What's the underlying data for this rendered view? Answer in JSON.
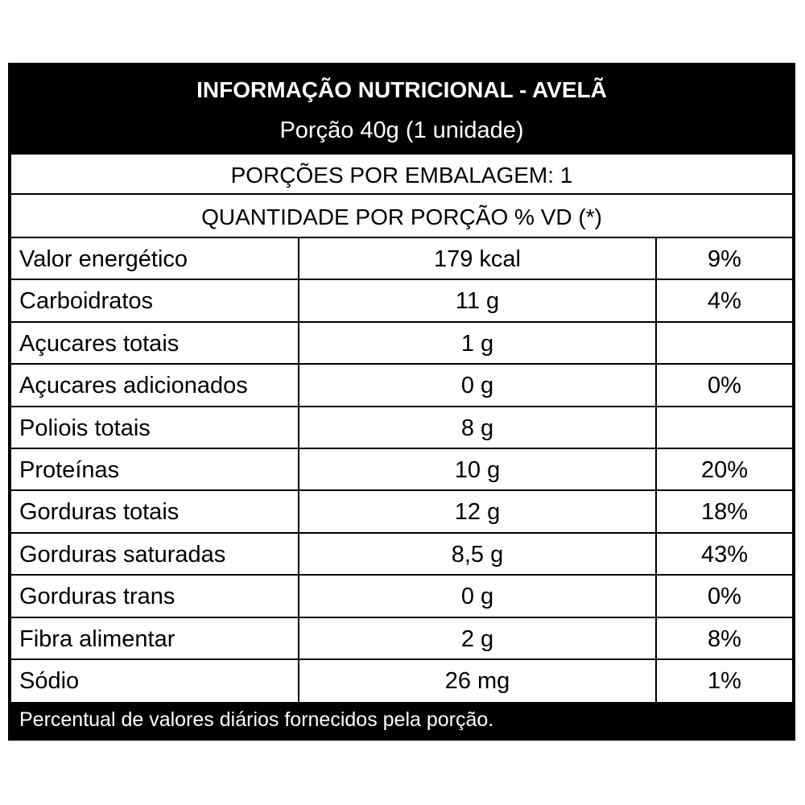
{
  "title": "INFORMAÇÃO NUTRICIONAL - AVELÃ",
  "portion": "Porção 40g (1 unidade)",
  "servings": "PORÇÕES POR EMBALAGEM: 1",
  "quantity_header": "QUANTIDADE POR PORÇÃO % VD (*)",
  "rows": [
    {
      "name": "Valor energético",
      "amount": "179 kcal",
      "vd": "9%"
    },
    {
      "name": "Carboidratos",
      "amount": "11 g",
      "vd": "4%"
    },
    {
      "name": "Açucares totais",
      "amount": "1 g",
      "vd": ""
    },
    {
      "name": "Açucares adicionados",
      "amount": "0 g",
      "vd": "0%"
    },
    {
      "name": "Poliois totais",
      "amount": "8 g",
      "vd": ""
    },
    {
      "name": "Proteínas",
      "amount": "10 g",
      "vd": "20%"
    },
    {
      "name": "Gorduras totais",
      "amount": "12 g",
      "vd": "18%"
    },
    {
      "name": "Gorduras saturadas",
      "amount": "8,5 g",
      "vd": "43%"
    },
    {
      "name": "Gorduras trans",
      "amount": "0 g",
      "vd": "0%"
    },
    {
      "name": "Fibra alimentar",
      "amount": "2 g",
      "vd": "8%"
    },
    {
      "name": "Sódio",
      "amount": "26 mg",
      "vd": "1%"
    }
  ],
  "footer": "Percentual de valores diários fornecidos pela porção."
}
